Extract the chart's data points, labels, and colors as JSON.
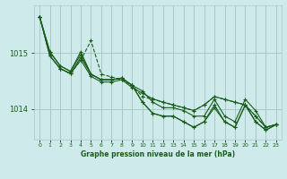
{
  "title": "Graphe pression niveau de la mer (hPa)",
  "bg_color": "#ceeaea",
  "grid_color": "#a8c8c8",
  "line_color": "#1a5c1a",
  "marker_color": "#1a5c1a",
  "ytick_color": "#1a5c1a",
  "xtick_color": "#1a5c1a",
  "xlabel_color": "#1a5c1a",
  "yticks": [
    1014,
    1015
  ],
  "xlim": [
    -0.5,
    23.5
  ],
  "ylim": [
    1013.45,
    1015.85
  ],
  "series1": [
    1015.65,
    1014.95,
    1014.72,
    1014.63,
    1014.87,
    1014.58,
    1014.48,
    1014.48,
    1014.52,
    1014.38,
    1014.28,
    1014.18,
    1014.12,
    1014.07,
    1014.02,
    1013.97,
    1014.07,
    1014.22,
    1014.17,
    1014.12,
    1014.07,
    1013.87,
    1013.67,
    1013.72
  ],
  "series2": [
    1015.65,
    1014.95,
    1014.72,
    1014.63,
    1014.92,
    1014.62,
    1014.52,
    1014.52,
    1014.55,
    1014.42,
    1014.12,
    1013.92,
    1013.87,
    1013.87,
    1013.77,
    1013.67,
    1013.77,
    1014.07,
    1013.77,
    1013.67,
    1014.07,
    1013.77,
    1013.62,
    1013.72
  ],
  "series3": [
    1015.65,
    1015.02,
    1014.77,
    1014.67,
    1014.97,
    1014.62,
    1014.52,
    1014.52,
    1014.55,
    1014.42,
    1014.12,
    1013.92,
    1013.87,
    1013.87,
    1013.77,
    1013.67,
    1013.77,
    1014.02,
    1013.77,
    1013.67,
    1014.07,
    1013.77,
    1013.62,
    1013.72
  ],
  "series4": [
    1015.65,
    1015.02,
    1014.77,
    1014.67,
    1015.02,
    1014.62,
    1014.52,
    1014.52,
    1014.55,
    1014.42,
    1014.32,
    1014.12,
    1014.02,
    1014.02,
    1013.97,
    1013.87,
    1013.87,
    1014.17,
    1013.87,
    1013.77,
    1014.17,
    1013.97,
    1013.67,
    1013.72
  ],
  "dashed": [
    1015.65,
    1014.95,
    1014.72,
    1014.63,
    1014.87,
    1015.22,
    1014.62,
    1014.57,
    1014.52,
    1014.42,
    1014.22,
    1014.17,
    1014.12,
    1014.07,
    1014.02,
    1013.97,
    1014.07,
    1014.22,
    1014.17,
    1014.12,
    1014.07,
    1013.87,
    1013.67,
    1013.72
  ]
}
